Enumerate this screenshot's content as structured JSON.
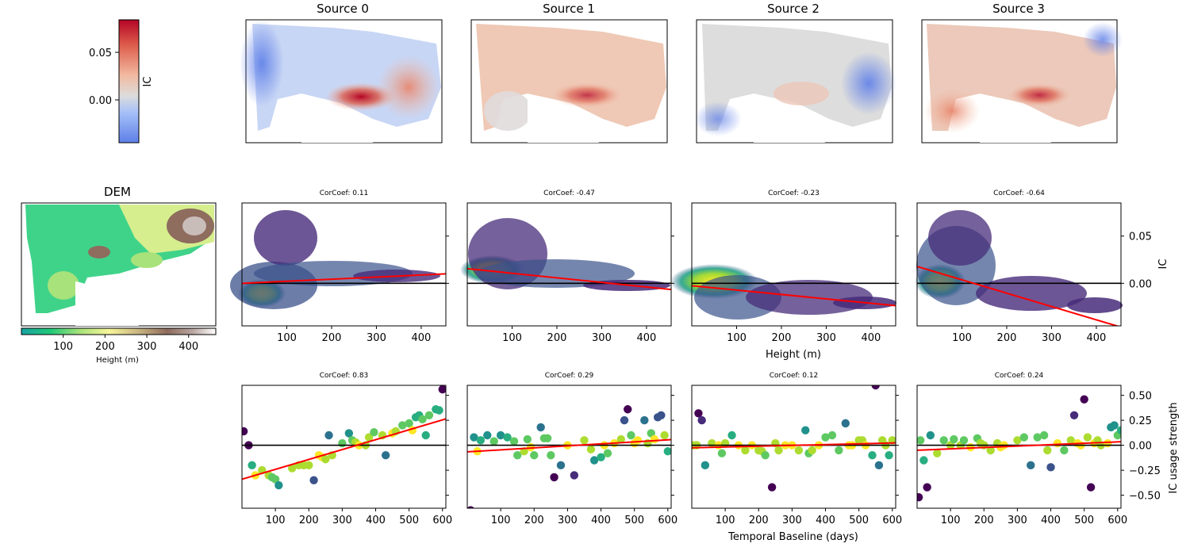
{
  "chart_data": [
    {
      "type": "heatmap",
      "role": "maps",
      "titles": [
        "Source 0",
        "Source 1",
        "Source 2",
        "Source 3"
      ],
      "colorbar": {
        "label": "IC",
        "ticks": [
          {
            "v": 0.05,
            "label": "0.05"
          },
          {
            "v": 0.0,
            "label": "0.00"
          }
        ],
        "range": [
          -0.045,
          0.085
        ]
      }
    },
    {
      "type": "heatmap",
      "role": "dem",
      "title": "DEM",
      "xlabel": "Height (m)",
      "colorbar_ticks": [
        {
          "v": 100,
          "label": "100"
        },
        {
          "v": 200,
          "label": "200"
        },
        {
          "v": 300,
          "label": "300"
        },
        {
          "v": 400,
          "label": "400"
        }
      ],
      "range": [
        0,
        465
      ]
    },
    {
      "type": "scatter",
      "role": "height",
      "xlabel": "Height (m)",
      "ylabel": "IC",
      "xlim": [
        0,
        455
      ],
      "ylim": [
        -0.045,
        0.085
      ],
      "xticks": [
        {
          "v": 100,
          "label": "100"
        },
        {
          "v": 200,
          "label": "200"
        },
        {
          "v": 300,
          "label": "300"
        },
        {
          "v": 400,
          "label": "400"
        }
      ],
      "yticks": [
        {
          "v": 0.05,
          "label": "0.05"
        },
        {
          "v": 0.0,
          "label": "0.00"
        }
      ],
      "panels": [
        {
          "corcoef_label": "CorCoef: 0.11",
          "fit": {
            "slope": 2.2e-05,
            "intercept": 0.0
          }
        },
        {
          "corcoef_label": "CorCoef: -0.47",
          "fit": {
            "slope": -4.85e-05,
            "intercept": 0.0155
          }
        },
        {
          "corcoef_label": "CorCoef: -0.23",
          "fit": {
            "slope": -4.65e-05,
            "intercept": -0.0025
          }
        },
        {
          "corcoef_label": "CorCoef: -0.64",
          "fit": {
            "slope": -0.000141,
            "intercept": 0.0178
          }
        }
      ]
    },
    {
      "type": "scatter",
      "role": "temporal",
      "xlabel": "Temporal Baseline (days)",
      "ylabel": "IC usage strength",
      "xlim": [
        0,
        610
      ],
      "ylim": [
        -0.63,
        0.6
      ],
      "xticks": [
        {
          "v": 100,
          "label": "100"
        },
        {
          "v": 200,
          "label": "200"
        },
        {
          "v": 300,
          "label": "300"
        },
        {
          "v": 400,
          "label": "400"
        },
        {
          "v": 500,
          "label": "500"
        },
        {
          "v": 600,
          "label": "600"
        }
      ],
      "yticks": [
        {
          "v": 0.5,
          "label": "0.50"
        },
        {
          "v": 0.25,
          "label": "0.25"
        },
        {
          "v": 0.0,
          "label": "0.00"
        },
        {
          "v": -0.25,
          "label": "−0.25"
        },
        {
          "v": -0.5,
          "label": "−0.50"
        }
      ],
      "panels": [
        {
          "corcoef_label": "CorCoef: 0.83",
          "fit": {
            "slope": 0.00099,
            "intercept": -0.34
          },
          "points": [
            [
              5,
              0.14
            ],
            [
              20,
              0.0
            ],
            [
              30,
              -0.2
            ],
            [
              40,
              -0.3
            ],
            [
              60,
              -0.25
            ],
            [
              80,
              -0.3
            ],
            [
              90,
              -0.32
            ],
            [
              100,
              -0.34
            ],
            [
              110,
              -0.4
            ],
            [
              150,
              -0.23
            ],
            [
              170,
              -0.2
            ],
            [
              185,
              -0.2
            ],
            [
              200,
              -0.2
            ],
            [
              215,
              -0.35
            ],
            [
              230,
              -0.1
            ],
            [
              240,
              -0.12
            ],
            [
              250,
              -0.14
            ],
            [
              260,
              0.1
            ],
            [
              270,
              -0.1
            ],
            [
              300,
              0.02
            ],
            [
              320,
              0.12
            ],
            [
              330,
              0.05
            ],
            [
              340,
              0.03
            ],
            [
              350,
              0.0
            ],
            [
              370,
              0.0
            ],
            [
              380,
              0.08
            ],
            [
              395,
              0.13
            ],
            [
              420,
              0.1
            ],
            [
              430,
              -0.1
            ],
            [
              450,
              0.12
            ],
            [
              460,
              0.14
            ],
            [
              480,
              0.2
            ],
            [
              500,
              0.22
            ],
            [
              510,
              0.15
            ],
            [
              520,
              0.28
            ],
            [
              530,
              0.3
            ],
            [
              540,
              0.26
            ],
            [
              550,
              0.1
            ],
            [
              560,
              0.3
            ],
            [
              580,
              0.36
            ],
            [
              590,
              0.35
            ],
            [
              600,
              0.56
            ]
          ]
        },
        {
          "corcoef_label": "CorCoef: 0.29",
          "fit": {
            "slope": 0.0002,
            "intercept": -0.066
          },
          "points": [
            [
              10,
              -0.65
            ],
            [
              20,
              0.08
            ],
            [
              30,
              -0.06
            ],
            [
              40,
              0.05
            ],
            [
              60,
              0.1
            ],
            [
              80,
              0.04
            ],
            [
              100,
              0.1
            ],
            [
              120,
              0.08
            ],
            [
              140,
              0.04
            ],
            [
              150,
              -0.1
            ],
            [
              170,
              -0.06
            ],
            [
              180,
              0.06
            ],
            [
              190,
              -0.02
            ],
            [
              200,
              -0.1
            ],
            [
              220,
              0.18
            ],
            [
              230,
              0.07
            ],
            [
              240,
              0.07
            ],
            [
              250,
              -0.1
            ],
            [
              260,
              -0.32
            ],
            [
              280,
              -0.2
            ],
            [
              300,
              0.0
            ],
            [
              320,
              -0.3
            ],
            [
              350,
              0.05
            ],
            [
              370,
              -0.04
            ],
            [
              380,
              -0.15
            ],
            [
              400,
              -0.12
            ],
            [
              410,
              0.0
            ],
            [
              420,
              -0.08
            ],
            [
              440,
              0.02
            ],
            [
              460,
              0.06
            ],
            [
              470,
              0.25
            ],
            [
              480,
              0.36
            ],
            [
              490,
              0.1
            ],
            [
              500,
              0.02
            ],
            [
              510,
              0.05
            ],
            [
              530,
              0.25
            ],
            [
              540,
              0.02
            ],
            [
              550,
              0.12
            ],
            [
              560,
              0.06
            ],
            [
              570,
              0.28
            ],
            [
              580,
              0.3
            ],
            [
              590,
              0.1
            ],
            [
              600,
              -0.06
            ]
          ]
        },
        {
          "corcoef_label": "CorCoef: 0.12",
          "fit": {
            "slope": 8e-05,
            "intercept": -0.025
          },
          "points": [
            [
              5,
              0.0
            ],
            [
              15,
              0.0
            ],
            [
              20,
              0.32
            ],
            [
              30,
              0.25
            ],
            [
              40,
              -0.2
            ],
            [
              60,
              0.02
            ],
            [
              80,
              0.0
            ],
            [
              90,
              -0.08
            ],
            [
              100,
              0.02
            ],
            [
              120,
              0.1
            ],
            [
              140,
              0.0
            ],
            [
              160,
              -0.05
            ],
            [
              180,
              0.0
            ],
            [
              200,
              -0.05
            ],
            [
              210,
              -0.06
            ],
            [
              220,
              -0.1
            ],
            [
              240,
              -0.42
            ],
            [
              250,
              0.02
            ],
            [
              260,
              -0.05
            ],
            [
              280,
              0.0
            ],
            [
              300,
              0.0
            ],
            [
              320,
              -0.05
            ],
            [
              340,
              0.15
            ],
            [
              350,
              -0.08
            ],
            [
              360,
              -0.05
            ],
            [
              380,
              0.0
            ],
            [
              400,
              0.08
            ],
            [
              420,
              0.1
            ],
            [
              440,
              -0.05
            ],
            [
              460,
              0.22
            ],
            [
              470,
              0.0
            ],
            [
              480,
              0.0
            ],
            [
              500,
              0.05
            ],
            [
              510,
              0.05
            ],
            [
              520,
              0.0
            ],
            [
              540,
              -0.1
            ],
            [
              550,
              0.6
            ],
            [
              560,
              -0.2
            ],
            [
              570,
              0.05
            ],
            [
              580,
              0.0
            ],
            [
              590,
              -0.1
            ],
            [
              600,
              0.05
            ]
          ]
        },
        {
          "corcoef_label": "CorCoef: 0.24",
          "fit": {
            "slope": 0.00014,
            "intercept": -0.05
          },
          "points": [
            [
              5,
              -0.52
            ],
            [
              10,
              0.05
            ],
            [
              20,
              -0.15
            ],
            [
              30,
              -0.42
            ],
            [
              40,
              0.1
            ],
            [
              60,
              -0.08
            ],
            [
              80,
              0.05
            ],
            [
              100,
              0.0
            ],
            [
              110,
              0.06
            ],
            [
              130,
              0.0
            ],
            [
              140,
              0.05
            ],
            [
              160,
              -0.02
            ],
            [
              180,
              0.07
            ],
            [
              190,
              0.02
            ],
            [
              200,
              0.0
            ],
            [
              220,
              -0.05
            ],
            [
              240,
              0.02
            ],
            [
              250,
              -0.02
            ],
            [
              260,
              0.0
            ],
            [
              300,
              0.05
            ],
            [
              320,
              0.08
            ],
            [
              340,
              -0.2
            ],
            [
              360,
              0.08
            ],
            [
              380,
              0.1
            ],
            [
              390,
              -0.05
            ],
            [
              400,
              -0.22
            ],
            [
              420,
              0.02
            ],
            [
              440,
              -0.05
            ],
            [
              460,
              0.05
            ],
            [
              470,
              0.3
            ],
            [
              480,
              0.02
            ],
            [
              490,
              0.0
            ],
            [
              500,
              0.46
            ],
            [
              510,
              0.08
            ],
            [
              520,
              -0.42
            ],
            [
              530,
              0.02
            ],
            [
              540,
              0.05
            ],
            [
              550,
              0.0
            ],
            [
              570,
              0.02
            ],
            [
              580,
              0.18
            ],
            [
              590,
              0.2
            ],
            [
              600,
              0.1
            ],
            [
              610,
              0.15
            ]
          ]
        }
      ]
    }
  ],
  "colors": {
    "fit_line": "#ff0000",
    "zero_line": "#000000",
    "corcoef_text": "#ff0000"
  }
}
